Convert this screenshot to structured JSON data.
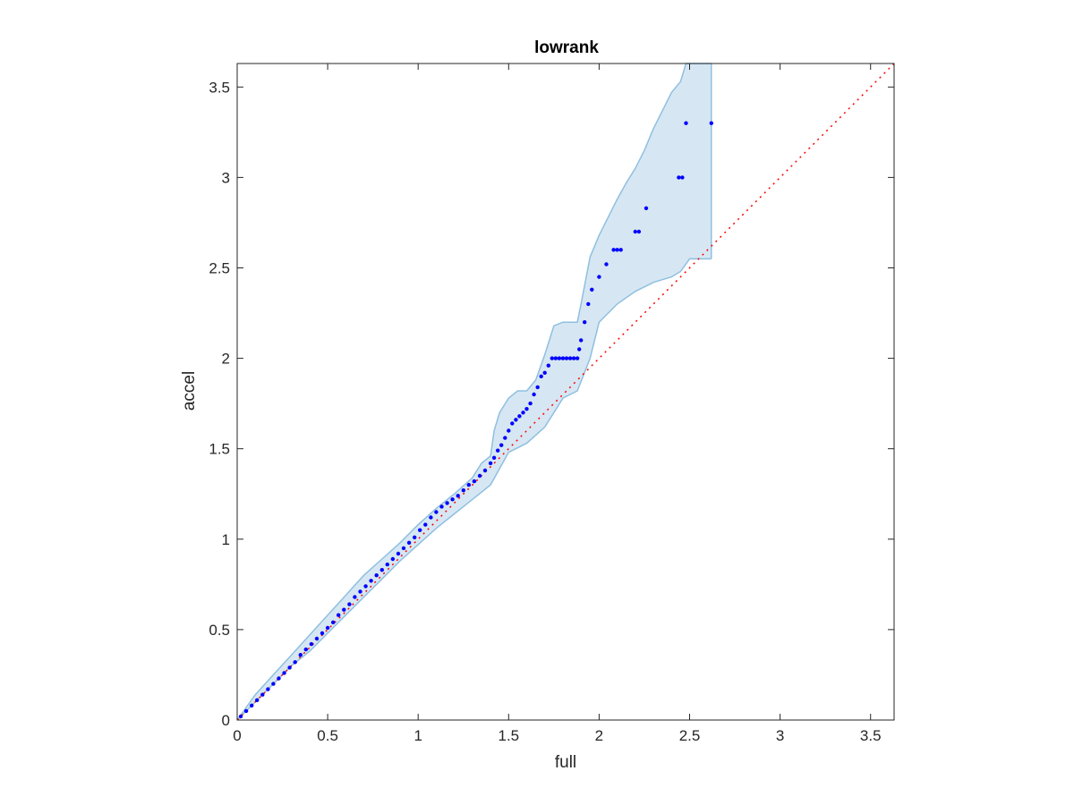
{
  "chart_data": {
    "type": "scatter",
    "title": "lowrank",
    "xlabel": "full",
    "ylabel": "accel",
    "xlim": [
      0,
      3.63
    ],
    "ylim": [
      0,
      3.63
    ],
    "xticks": [
      "0",
      "0.5",
      "1",
      "1.5",
      "2",
      "2.5",
      "3",
      "3.5"
    ],
    "yticks": [
      "0",
      "0.5",
      "1",
      "1.5",
      "2",
      "2.5",
      "3",
      "3.5"
    ],
    "grid": false,
    "reference_line": {
      "from": [
        0,
        0
      ],
      "to": [
        3.63,
        3.63
      ],
      "style": "dotted",
      "color": "#ff0000"
    },
    "points_color": "#0000ff",
    "band_fill": "#d6e7f3",
    "band_edge": "#8fbfe0",
    "band": {
      "x_upper": [
        0,
        0.1,
        0.2,
        0.3,
        0.4,
        0.5,
        0.6,
        0.7,
        0.8,
        0.9,
        1.0,
        1.1,
        1.2,
        1.3,
        1.35,
        1.4,
        1.42,
        1.45,
        1.5,
        1.55,
        1.6,
        1.65,
        1.7,
        1.75,
        1.8,
        1.85,
        1.88,
        1.9,
        1.95,
        2.0,
        2.05,
        2.1,
        2.15,
        2.2,
        2.25,
        2.3,
        2.35,
        2.4,
        2.45,
        2.48,
        2.5,
        2.62
      ],
      "y_upper": [
        0,
        0.14,
        0.25,
        0.36,
        0.47,
        0.58,
        0.69,
        0.8,
        0.89,
        0.98,
        1.08,
        1.17,
        1.25,
        1.34,
        1.42,
        1.46,
        1.6,
        1.7,
        1.78,
        1.82,
        1.82,
        1.88,
        2.02,
        2.18,
        2.2,
        2.2,
        2.2,
        2.3,
        2.56,
        2.68,
        2.78,
        2.88,
        2.97,
        3.05,
        3.15,
        3.27,
        3.37,
        3.47,
        3.53,
        3.63,
        3.63,
        3.63
      ],
      "x_lower": [
        0,
        0.1,
        0.2,
        0.3,
        0.4,
        0.5,
        0.6,
        0.7,
        0.8,
        0.9,
        1.0,
        1.1,
        1.2,
        1.3,
        1.4,
        1.45,
        1.5,
        1.6,
        1.7,
        1.75,
        1.8,
        1.88,
        1.95,
        2.0,
        2.1,
        2.2,
        2.3,
        2.4,
        2.45,
        2.5,
        2.55,
        2.62
      ],
      "y_lower": [
        0,
        0.1,
        0.2,
        0.3,
        0.38,
        0.48,
        0.58,
        0.68,
        0.78,
        0.88,
        0.97,
        1.06,
        1.14,
        1.22,
        1.3,
        1.39,
        1.48,
        1.53,
        1.62,
        1.7,
        1.78,
        1.82,
        2.0,
        2.2,
        2.3,
        2.37,
        2.42,
        2.45,
        2.48,
        2.55,
        2.55,
        2.55
      ]
    },
    "points": {
      "x": [
        0.02,
        0.05,
        0.08,
        0.11,
        0.14,
        0.17,
        0.2,
        0.23,
        0.26,
        0.29,
        0.32,
        0.35,
        0.38,
        0.41,
        0.44,
        0.47,
        0.5,
        0.53,
        0.56,
        0.59,
        0.62,
        0.65,
        0.68,
        0.71,
        0.74,
        0.77,
        0.8,
        0.83,
        0.86,
        0.89,
        0.92,
        0.95,
        0.98,
        1.01,
        1.04,
        1.07,
        1.1,
        1.13,
        1.16,
        1.19,
        1.22,
        1.25,
        1.28,
        1.31,
        1.34,
        1.37,
        1.4,
        1.42,
        1.44,
        1.46,
        1.48,
        1.5,
        1.52,
        1.54,
        1.56,
        1.58,
        1.6,
        1.62,
        1.64,
        1.66,
        1.68,
        1.7,
        1.72,
        1.74,
        1.76,
        1.78,
        1.8,
        1.82,
        1.84,
        1.86,
        1.88,
        1.89,
        1.9,
        1.92,
        1.94,
        1.96,
        2.0,
        2.04,
        2.08,
        2.1,
        2.12,
        2.2,
        2.22,
        2.26,
        2.44,
        2.46,
        2.48,
        2.62
      ],
      "y": [
        0.02,
        0.05,
        0.08,
        0.11,
        0.14,
        0.17,
        0.2,
        0.23,
        0.26,
        0.29,
        0.32,
        0.36,
        0.39,
        0.42,
        0.45,
        0.48,
        0.51,
        0.54,
        0.58,
        0.61,
        0.64,
        0.68,
        0.71,
        0.74,
        0.77,
        0.8,
        0.83,
        0.86,
        0.89,
        0.92,
        0.95,
        0.98,
        1.01,
        1.05,
        1.08,
        1.12,
        1.15,
        1.18,
        1.2,
        1.22,
        1.24,
        1.27,
        1.3,
        1.32,
        1.35,
        1.38,
        1.42,
        1.45,
        1.49,
        1.52,
        1.56,
        1.6,
        1.64,
        1.66,
        1.68,
        1.7,
        1.72,
        1.75,
        1.8,
        1.84,
        1.9,
        1.92,
        1.96,
        2.0,
        2.0,
        2.0,
        2.0,
        2.0,
        2.0,
        2.0,
        2.0,
        2.05,
        2.1,
        2.2,
        2.3,
        2.38,
        2.45,
        2.52,
        2.6,
        2.6,
        2.6,
        2.7,
        2.7,
        2.83,
        3.0,
        3.0,
        3.3,
        3.3
      ]
    }
  }
}
